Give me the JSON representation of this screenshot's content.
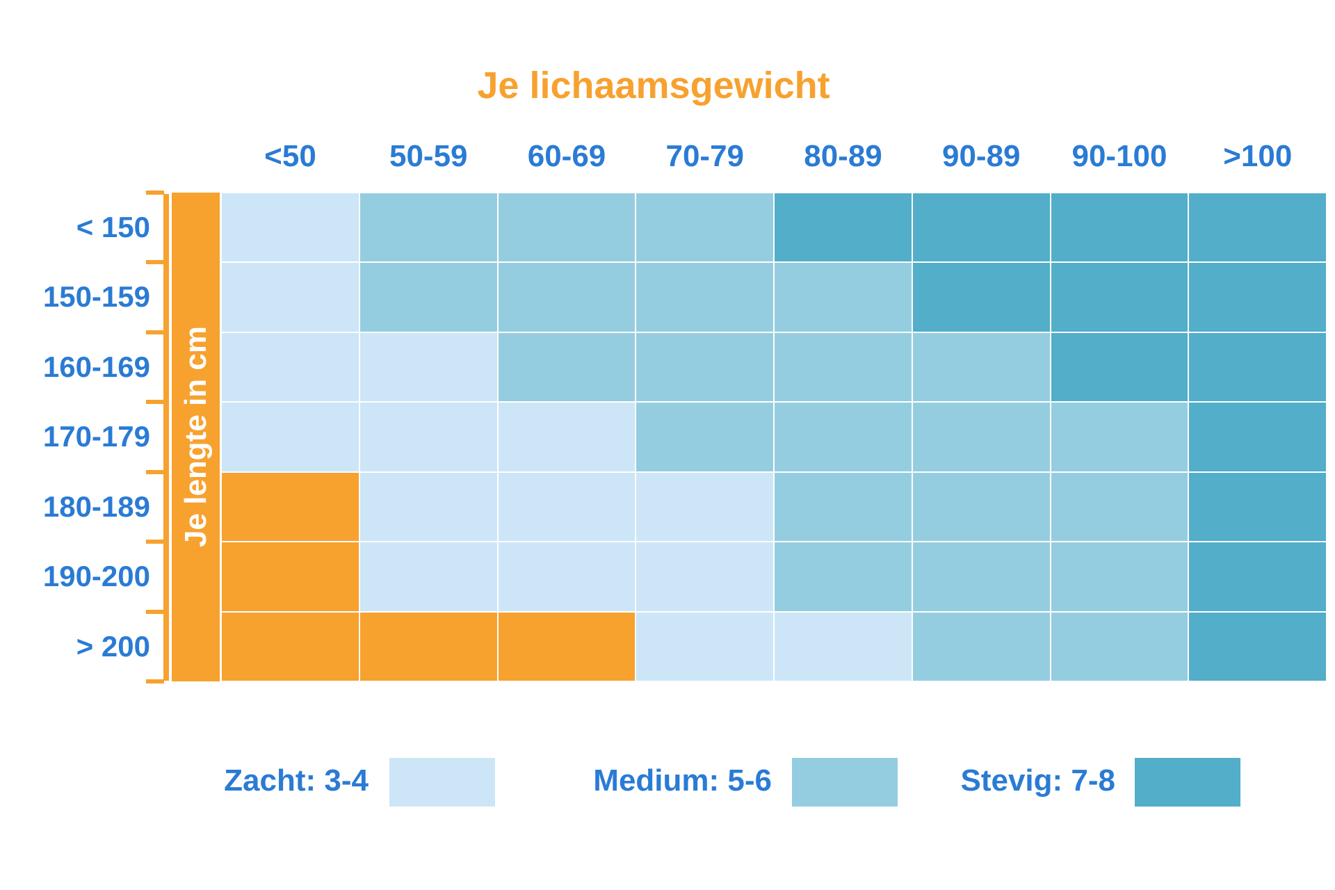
{
  "chart_data": {
    "type": "heatmap",
    "title": "Je lichaamsgewicht",
    "xlabel": "Je lichaamsgewicht",
    "ylabel": "Je lengte in cm",
    "x_categories": [
      "<50",
      "50-59",
      "60-69",
      "70-79",
      "80-89",
      "90-89",
      "90-100",
      ">100"
    ],
    "y_categories": [
      "< 150",
      "150-159",
      "160-169",
      "170-179",
      "180-189",
      "190-200",
      "> 200"
    ],
    "values": [
      [
        "Zacht",
        "Medium",
        "Medium",
        "Medium",
        "Stevig",
        "Stevig",
        "Stevig",
        "Stevig"
      ],
      [
        "Zacht",
        "Medium",
        "Medium",
        "Medium",
        "Medium",
        "Stevig",
        "Stevig",
        "Stevig"
      ],
      [
        "Zacht",
        "Zacht",
        "Medium",
        "Medium",
        "Medium",
        "Medium",
        "Stevig",
        "Stevig"
      ],
      [
        "Zacht",
        "Zacht",
        "Zacht",
        "Medium",
        "Medium",
        "Medium",
        "Medium",
        "Stevig"
      ],
      [
        "none",
        "Zacht",
        "Zacht",
        "Zacht",
        "Medium",
        "Medium",
        "Medium",
        "Stevig"
      ],
      [
        "none",
        "Zacht",
        "Zacht",
        "Zacht",
        "Medium",
        "Medium",
        "Medium",
        "Stevig"
      ],
      [
        "none",
        "none",
        "none",
        "Zacht",
        "Zacht",
        "Medium",
        "Medium",
        "Stevig"
      ]
    ],
    "legend": [
      {
        "key": "Zacht",
        "label": "Zacht: 3-4",
        "color": "#cce6f7"
      },
      {
        "key": "Medium",
        "label": "Medium: 5-6",
        "color": "#95cde0"
      },
      {
        "key": "Stevig",
        "label": "Stevig: 7-8",
        "color": "#52aec9"
      }
    ],
    "legend_placement": "bottom",
    "none_color": "#f7a12f"
  },
  "colors": {
    "accent": "#f7a12f",
    "text": "#2a7bd4"
  }
}
